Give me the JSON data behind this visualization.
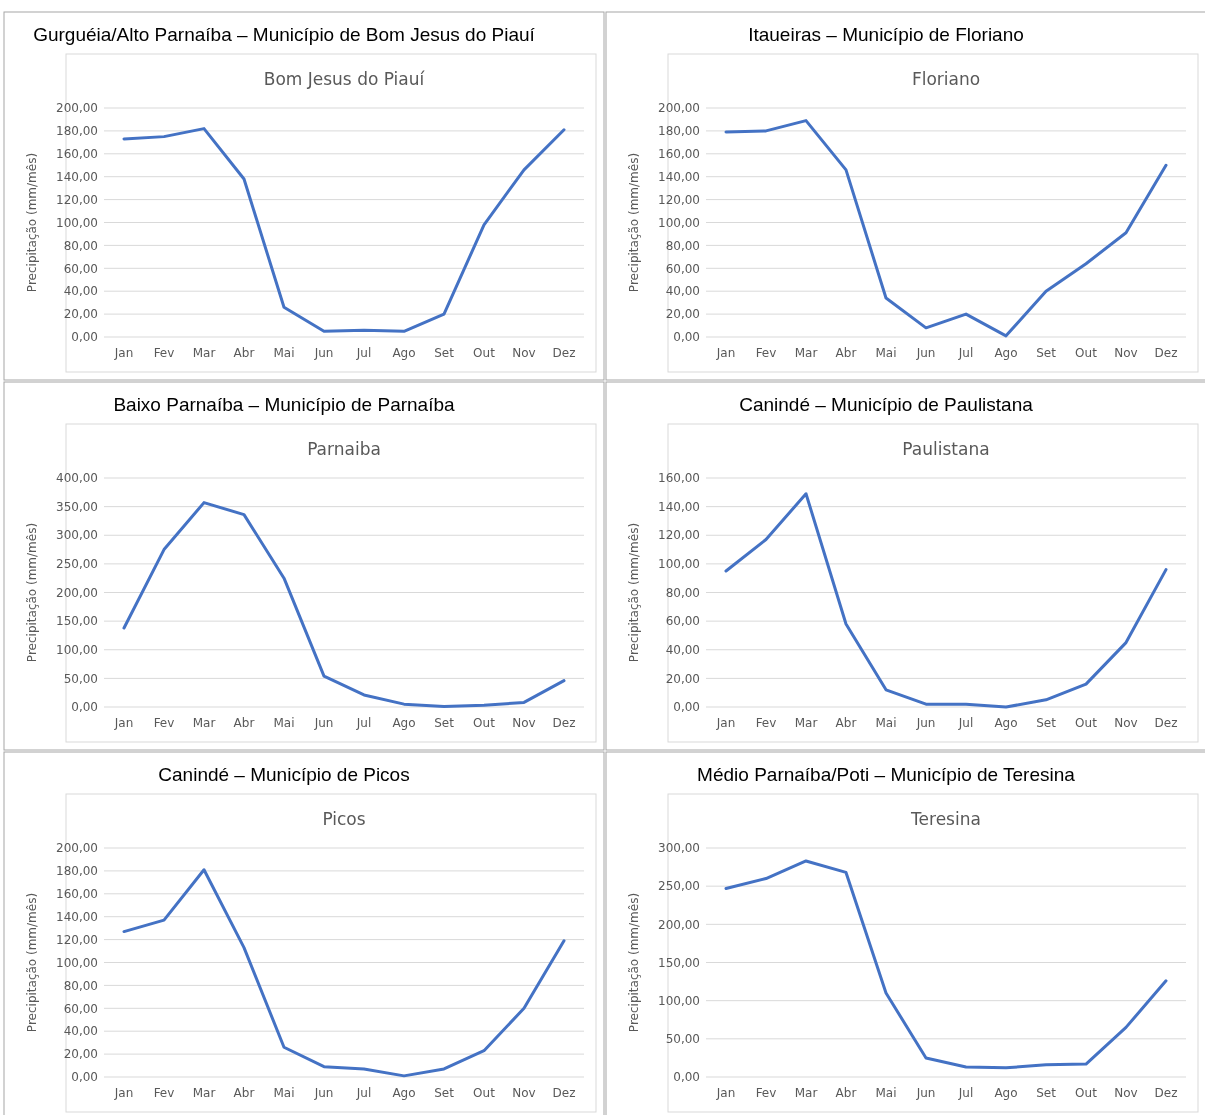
{
  "chart_data": [
    {
      "type": "line",
      "title": "Gurguéia/Alto Parnaíba – Município de Bom Jesus do Piauí",
      "subtitle": "Bom Jesus do Piauí",
      "ylabel": "Precipitação (mm/mês)",
      "categories": [
        "Jan",
        "Fev",
        "Mar",
        "Abr",
        "Mai",
        "Jun",
        "Jul",
        "Ago",
        "Set",
        "Out",
        "Nov",
        "Dez"
      ],
      "series": [
        {
          "color": "#4472c4",
          "values": [
            173,
            175,
            182,
            138,
            26,
            5,
            6,
            5,
            20,
            98,
            146,
            181
          ]
        }
      ],
      "ylim": [
        0,
        200
      ],
      "yticks": [
        {
          "value": 0,
          "label": "0,00"
        },
        {
          "value": 20,
          "label": "20,00"
        },
        {
          "value": 40,
          "label": "40,00"
        },
        {
          "value": 60,
          "label": "60,00"
        },
        {
          "value": 80,
          "label": "80,00"
        },
        {
          "value": 100,
          "label": "100,00"
        },
        {
          "value": 120,
          "label": "120,00"
        },
        {
          "value": 140,
          "label": "140,00"
        },
        {
          "value": 160,
          "label": "160,00"
        },
        {
          "value": 180,
          "label": "180,00"
        },
        {
          "value": 200,
          "label": "200,00"
        }
      ],
      "grid": "y",
      "marker": "none",
      "line_style": "solid"
    },
    {
      "type": "line",
      "title": "Itaueiras – Município de Floriano",
      "subtitle": "Floriano",
      "ylabel": "Precipitação (mm/mês)",
      "categories": [
        "Jan",
        "Fev",
        "Mar",
        "Abr",
        "Mai",
        "Jun",
        "Jul",
        "Ago",
        "Set",
        "Out",
        "Nov",
        "Dez"
      ],
      "series": [
        {
          "color": "#4472c4",
          "values": [
            179,
            180,
            189,
            146,
            34,
            8,
            20,
            1,
            40,
            64,
            91,
            150
          ]
        }
      ],
      "ylim": [
        0,
        200
      ],
      "yticks": [
        {
          "value": 0,
          "label": "0,00"
        },
        {
          "value": 20,
          "label": "20,00"
        },
        {
          "value": 40,
          "label": "40,00"
        },
        {
          "value": 60,
          "label": "60,00"
        },
        {
          "value": 80,
          "label": "80,00"
        },
        {
          "value": 100,
          "label": "100,00"
        },
        {
          "value": 120,
          "label": "120,00"
        },
        {
          "value": 140,
          "label": "140,00"
        },
        {
          "value": 160,
          "label": "160,00"
        },
        {
          "value": 180,
          "label": "180,00"
        },
        {
          "value": 200,
          "label": "200,00"
        }
      ],
      "grid": "y",
      "marker": "none",
      "line_style": "solid"
    },
    {
      "type": "line",
      "title": "Baixo Parnaíba – Município de Parnaíba",
      "subtitle": "Parnaiba",
      "ylabel": "Precipitação (mm/mês)",
      "categories": [
        "Jan",
        "Fev",
        "Mar",
        "Abr",
        "Mai",
        "Jun",
        "Jul",
        "Ago",
        "Set",
        "Out",
        "Nov",
        "Dez"
      ],
      "series": [
        {
          "color": "#4472c4",
          "values": [
            138,
            275,
            357,
            336,
            225,
            54,
            21,
            5,
            1,
            3,
            8,
            46
          ]
        }
      ],
      "ylim": [
        0,
        400
      ],
      "yticks": [
        {
          "value": 0,
          "label": "0,00"
        },
        {
          "value": 50,
          "label": "50,00"
        },
        {
          "value": 100,
          "label": "100,00"
        },
        {
          "value": 150,
          "label": "150,00"
        },
        {
          "value": 200,
          "label": "200,00"
        },
        {
          "value": 250,
          "label": "250,00"
        },
        {
          "value": 300,
          "label": "300,00"
        },
        {
          "value": 350,
          "label": "350,00"
        },
        {
          "value": 400,
          "label": "400,00"
        }
      ],
      "grid": "y",
      "marker": "none",
      "line_style": "solid"
    },
    {
      "type": "line",
      "title": "Canindé – Município de Paulistana",
      "subtitle": "Paulistana",
      "ylabel": "Precipitação (mm/mês)",
      "categories": [
        "Jan",
        "Fev",
        "Mar",
        "Abr",
        "Mai",
        "Jun",
        "Jul",
        "Ago",
        "Set",
        "Out",
        "Nov",
        "Dez"
      ],
      "series": [
        {
          "color": "#4472c4",
          "values": [
            95,
            117,
            149,
            58,
            12,
            2,
            2,
            0,
            5,
            16,
            45,
            96
          ]
        }
      ],
      "ylim": [
        0,
        160
      ],
      "yticks": [
        {
          "value": 0,
          "label": "0,00"
        },
        {
          "value": 20,
          "label": "20,00"
        },
        {
          "value": 40,
          "label": "40,00"
        },
        {
          "value": 60,
          "label": "60,00"
        },
        {
          "value": 80,
          "label": "80,00"
        },
        {
          "value": 100,
          "label": "100,00"
        },
        {
          "value": 120,
          "label": "120,00"
        },
        {
          "value": 140,
          "label": "140,00"
        },
        {
          "value": 160,
          "label": "160,00"
        }
      ],
      "grid": "y",
      "marker": "none",
      "line_style": "solid"
    },
    {
      "type": "line",
      "title": "Canindé – Município de Picos",
      "subtitle": "Picos",
      "ylabel": "Precipitação (mm/mês)",
      "categories": [
        "Jan",
        "Fev",
        "Mar",
        "Abr",
        "Mai",
        "Jun",
        "Jul",
        "Ago",
        "Set",
        "Out",
        "Nov",
        "Dez"
      ],
      "series": [
        {
          "color": "#4472c4",
          "values": [
            127,
            137,
            181,
            113,
            26,
            9,
            7,
            1,
            7,
            23,
            60,
            119
          ]
        }
      ],
      "ylim": [
        0,
        200
      ],
      "yticks": [
        {
          "value": 0,
          "label": "0,00"
        },
        {
          "value": 20,
          "label": "20,00"
        },
        {
          "value": 40,
          "label": "40,00"
        },
        {
          "value": 60,
          "label": "60,00"
        },
        {
          "value": 80,
          "label": "80,00"
        },
        {
          "value": 100,
          "label": "100,00"
        },
        {
          "value": 120,
          "label": "120,00"
        },
        {
          "value": 140,
          "label": "140,00"
        },
        {
          "value": 160,
          "label": "160,00"
        },
        {
          "value": 180,
          "label": "180,00"
        },
        {
          "value": 200,
          "label": "200,00"
        }
      ],
      "grid": "y",
      "marker": "none",
      "line_style": "solid"
    },
    {
      "type": "line",
      "title": "Médio Parnaíba/Poti – Município de Teresina",
      "subtitle": "Teresina",
      "ylabel": "Precipitação (mm/mês)",
      "categories": [
        "Jan",
        "Fev",
        "Mar",
        "Abr",
        "Mai",
        "Jun",
        "Jul",
        "Ago",
        "Set",
        "Out",
        "Nov",
        "Dez"
      ],
      "series": [
        {
          "color": "#4472c4",
          "values": [
            247,
            260,
            283,
            268,
            110,
            25,
            13,
            12,
            16,
            17,
            65,
            126
          ]
        }
      ],
      "ylim": [
        0,
        300
      ],
      "yticks": [
        {
          "value": 0,
          "label": "0,00"
        },
        {
          "value": 50,
          "label": "50,00"
        },
        {
          "value": 100,
          "label": "100,00"
        },
        {
          "value": 150,
          "label": "150,00"
        },
        {
          "value": 200,
          "label": "200,00"
        },
        {
          "value": 250,
          "label": "250,00"
        },
        {
          "value": 300,
          "label": "300,00"
        }
      ],
      "grid": "y",
      "marker": "none",
      "line_style": "solid"
    }
  ]
}
